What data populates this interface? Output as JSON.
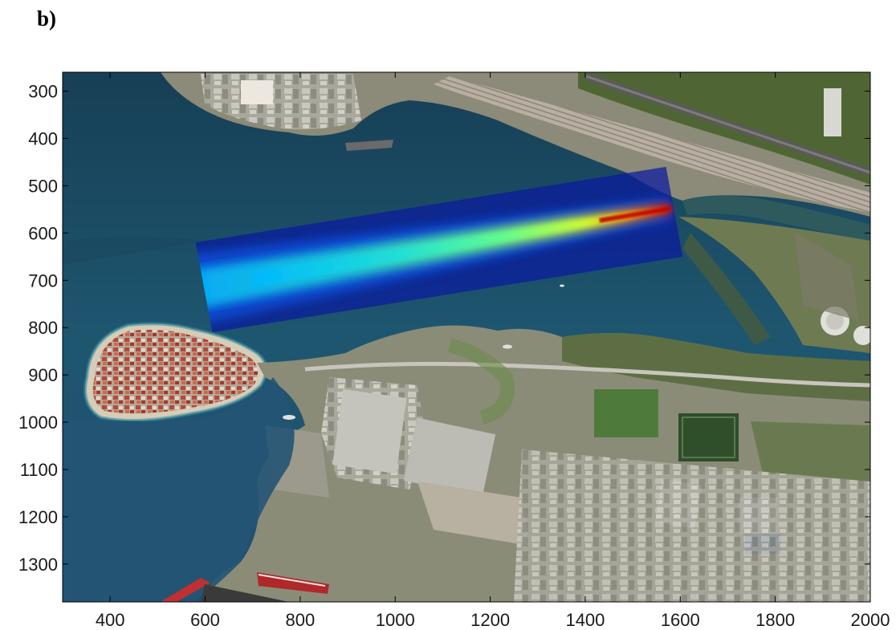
{
  "panel_label": "b)",
  "chart_data": {
    "type": "heatmap",
    "x_ticks": [
      400,
      600,
      800,
      1000,
      1200,
      1400,
      1600,
      1800,
      2000
    ],
    "y_ticks": [
      300,
      400,
      500,
      600,
      700,
      800,
      900,
      1000,
      1100,
      1200,
      1300
    ],
    "xlim": [
      300,
      2000
    ],
    "ylim": [
      260,
      1380
    ],
    "y_reversed": true,
    "grid": false,
    "background": "aerial photograph of a harbour with a peninsula town, shipyard and river mouth",
    "overlay": {
      "description": "plume concentration field in a rotated rectangular domain",
      "corners": [
        [
          580,
          620
        ],
        [
          1570,
          460
        ],
        [
          1605,
          650
        ],
        [
          615,
          810
        ]
      ],
      "centerline": [
        [
          1580,
          548
        ],
        [
          600,
          715
        ]
      ],
      "colormap": [
        "#000080",
        "#0040ff",
        "#00c0ff",
        "#40ffb0",
        "#c0ff40",
        "#ffb000",
        "#ff2000",
        "#800000"
      ]
    },
    "colors": {
      "sea_deep": "#1a4a6e",
      "sea_mid": "#2a6a84",
      "land": "#9a9a86",
      "vegetation": "#4e6a36"
    }
  }
}
